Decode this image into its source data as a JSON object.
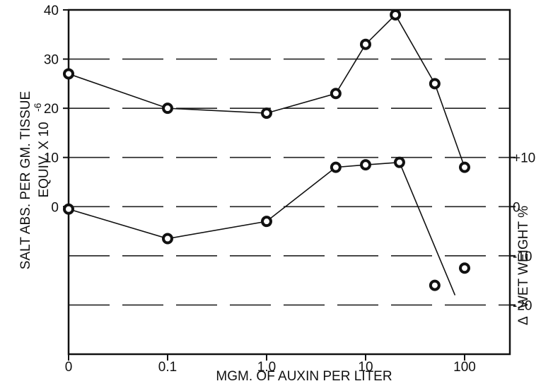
{
  "chart_data": {
    "type": "scatter",
    "title": "",
    "xlabel": "MGM. OF AUXIN PER LITER",
    "ylabel_line1": "SALT ABS. PER GM. TISSUE",
    "ylabel_line2": "EQUIV. X 10",
    "ylabel_exponent": "-6",
    "y2label_prefix": "Δ",
    "y2label": "WET WEIGHT %",
    "grid": true,
    "x_scale": "log (0 placed at one decade below 0.1)",
    "x_ticks": [
      "0",
      "0.1",
      "1.0",
      "10",
      "100"
    ],
    "ylim": [
      -30,
      40
    ],
    "y_ticks": [
      "0",
      "10",
      "20",
      "30",
      "40"
    ],
    "y2lim": [
      -30,
      40
    ],
    "y2_ticks": [
      "+10",
      "0",
      "-10",
      "-20"
    ],
    "series": [
      {
        "axis": "left",
        "x": [
          0,
          0.1,
          1.0,
          5,
          10,
          20,
          50,
          100
        ],
        "y": [
          27,
          20,
          19,
          23,
          33,
          39,
          25,
          8
        ]
      },
      {
        "axis": "right",
        "x": [
          0,
          0.1,
          1.0,
          5,
          10,
          22,
          50,
          100
        ],
        "y": [
          -0.5,
          -6.5,
          -3,
          8,
          8.5,
          9,
          -16,
          -12.5
        ],
        "connected_through_index": 5,
        "trailing_line_to": {
          "x": 80,
          "y": -18
        }
      }
    ]
  }
}
